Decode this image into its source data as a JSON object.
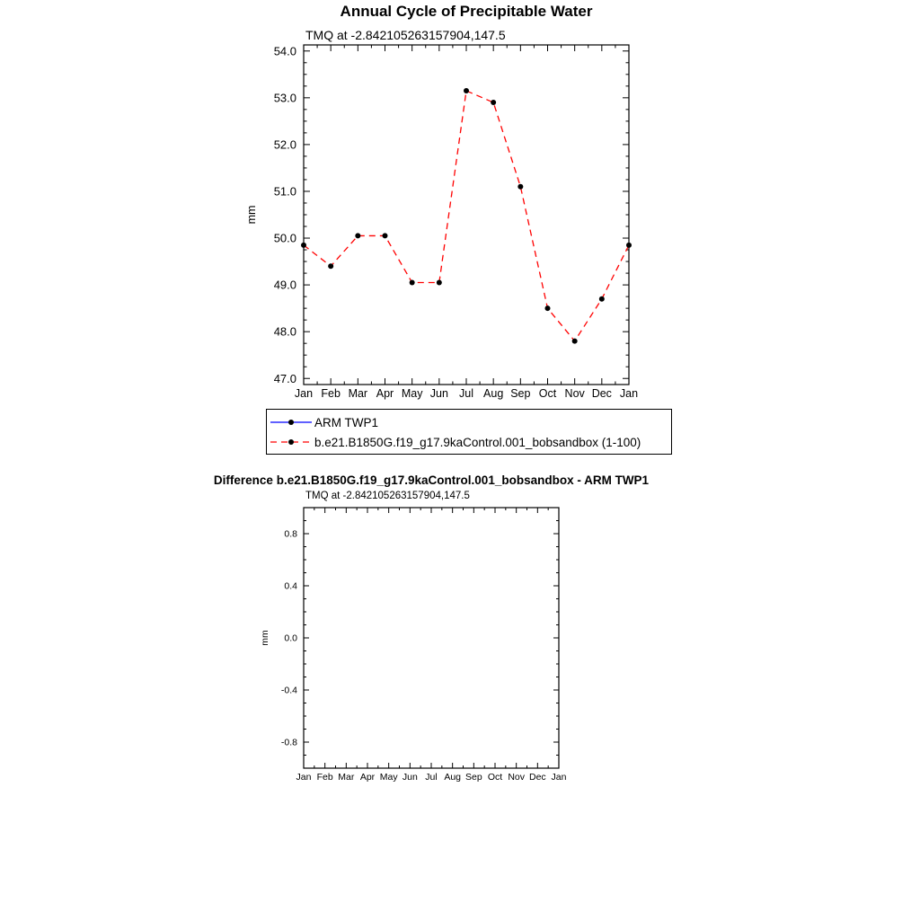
{
  "page": {
    "background_color": "#ffffff",
    "text_color": "#000000"
  },
  "chart_data": [
    {
      "type": "line",
      "title": "Annual Cycle of Precipitable Water",
      "subtitle": "TMQ at -2.842105263157904,147.5",
      "xlabel": "",
      "ylabel": "mm",
      "categories": [
        "Jan",
        "Feb",
        "Mar",
        "Apr",
        "May",
        "Jun",
        "Jul",
        "Aug",
        "Sep",
        "Oct",
        "Nov",
        "Dec",
        "Jan"
      ],
      "yticks": [
        47.0,
        48.0,
        49.0,
        50.0,
        51.0,
        52.0,
        53.0,
        54.0
      ],
      "ytick_labels": [
        "47.0",
        "48.0",
        "49.0",
        "50.0",
        "51.0",
        "52.0",
        "53.0",
        "54.0"
      ],
      "ylim": [
        46.87,
        54.13
      ],
      "yminor_step": 0.25,
      "grid": false,
      "legend_position": "below-plot-boxed",
      "series": [
        {
          "name": "ARM TWP1",
          "color": "#0000ff",
          "line_style": "solid",
          "marker": "filled-circle",
          "marker_color": "#000000",
          "values": []
        },
        {
          "name": "b.e21.B1850G.f19_g17.9kaControl.001_bobsandbox (1-100)",
          "color": "#ff0000",
          "line_style": "dashed",
          "marker": "filled-circle",
          "marker_color": "#000000",
          "values": [
            49.85,
            49.4,
            50.05,
            50.05,
            49.05,
            49.05,
            53.15,
            52.9,
            51.1,
            48.5,
            47.8,
            48.7,
            49.85
          ]
        }
      ]
    },
    {
      "type": "line",
      "title": "Difference b.e21.B1850G.f19_g17.9kaControl.001_bobsandbox - ARM TWP1",
      "subtitle": "TMQ at -2.842105263157904,147.5",
      "xlabel": "",
      "ylabel": "mm",
      "categories": [
        "Jan",
        "Feb",
        "Mar",
        "Apr",
        "May",
        "Jun",
        "Jul",
        "Aug",
        "Sep",
        "Oct",
        "Nov",
        "Dec",
        "Jan"
      ],
      "yticks": [
        -0.8,
        -0.4,
        0.0,
        0.4,
        0.8
      ],
      "ytick_labels": [
        "-0.8",
        "-0.4",
        "0.0",
        "0.4",
        "0.8"
      ],
      "ylim": [
        -1.0,
        1.0
      ],
      "yminor_step": 0.1,
      "grid": false,
      "series": []
    }
  ]
}
